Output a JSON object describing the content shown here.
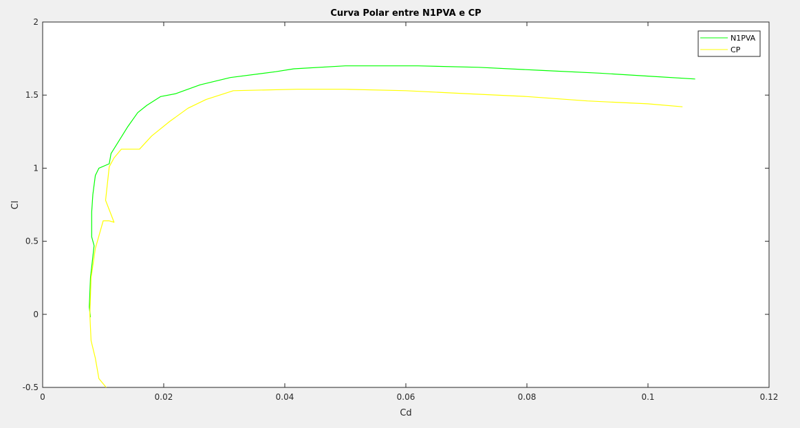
{
  "chart_data": {
    "type": "line",
    "title": "Curva Polar entre N1PVA e CP",
    "xlabel": "Cd",
    "ylabel": "Cl",
    "xlim": [
      0,
      0.12
    ],
    "ylim": [
      -0.5,
      2
    ],
    "xticks": [
      0,
      0.02,
      0.04,
      0.06,
      0.08,
      0.1,
      0.12
    ],
    "xtick_labels": [
      "0",
      "0.02",
      "0.04",
      "0.06",
      "0.08",
      "0.1",
      "0.12"
    ],
    "yticks": [
      -0.5,
      0,
      0.5,
      1,
      1.5,
      2
    ],
    "ytick_labels": [
      "-0.5",
      "0",
      "0.5",
      "1",
      "1.5",
      "2"
    ],
    "grid": false,
    "legend_position": "top-right",
    "series": [
      {
        "name": "N1PVA",
        "color": "#00ff00",
        "x": [
          0.0079,
          0.0077,
          0.0079,
          0.0085,
          0.0081,
          0.0081,
          0.0083,
          0.0087,
          0.0093,
          0.011,
          0.0113,
          0.0125,
          0.014,
          0.0157,
          0.0172,
          0.0195,
          0.022,
          0.026,
          0.031,
          0.0385,
          0.0415,
          0.05,
          0.062,
          0.072,
          0.082,
          0.092,
          0.1,
          0.1078
        ],
        "y": [
          -0.02,
          0.05,
          0.25,
          0.47,
          0.53,
          0.7,
          0.82,
          0.95,
          1.0,
          1.03,
          1.1,
          1.18,
          1.28,
          1.38,
          1.43,
          1.49,
          1.51,
          1.57,
          1.62,
          1.66,
          1.68,
          1.7,
          1.7,
          1.69,
          1.67,
          1.65,
          1.63,
          1.61
        ]
      },
      {
        "name": "CP",
        "color": "#ffff00",
        "x": [
          0.0105,
          0.0093,
          0.0087,
          0.008,
          0.0078,
          0.008,
          0.0087,
          0.01,
          0.011,
          0.0118,
          0.0104,
          0.011,
          0.0118,
          0.013,
          0.016,
          0.018,
          0.021,
          0.024,
          0.027,
          0.0315,
          0.042,
          0.05,
          0.06,
          0.07,
          0.08,
          0.09,
          0.1,
          0.1057
        ],
        "y": [
          -0.5,
          -0.44,
          -0.3,
          -0.18,
          0.0,
          0.25,
          0.45,
          0.64,
          0.64,
          0.63,
          0.78,
          1.01,
          1.07,
          1.13,
          1.13,
          1.22,
          1.32,
          1.41,
          1.47,
          1.53,
          1.54,
          1.54,
          1.53,
          1.51,
          1.49,
          1.46,
          1.44,
          1.42
        ]
      }
    ]
  }
}
